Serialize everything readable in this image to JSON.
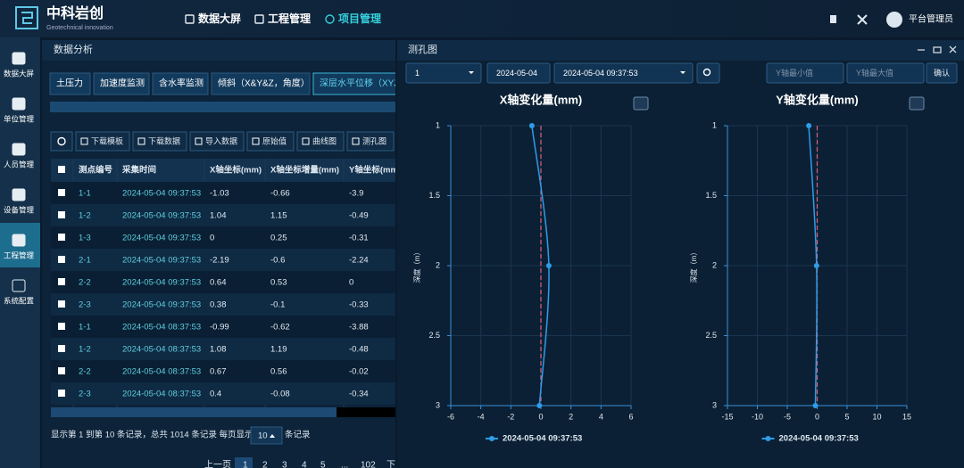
{
  "header": {
    "logo_title": "中科岩创",
    "logo_subtitle": "Geotechnical innovation",
    "nav": [
      "数据大屏",
      "工程管理",
      "项目管理"
    ],
    "user": "平台管理员"
  },
  "sidebar": [
    "数据大屏",
    "单位管理",
    "人员管理",
    "设备管理",
    "工程管理",
    "系统配置"
  ],
  "panel": {
    "title": "数据分析",
    "tabs": [
      "土压力",
      "加速度监测",
      "含水率监测",
      "倾斜（X&Y&Z，角度）",
      "深层水平位移（XYZ）"
    ],
    "toolbar": [
      "下载模板",
      "下载数据",
      "导入数据",
      "原始值",
      "曲线图",
      "测孔图"
    ],
    "table": {
      "columns": [
        "测点编号",
        "采集时间",
        "X轴坐标(mm)",
        "X轴坐标增量(mm)",
        "Y轴坐标(mm)"
      ],
      "rows": [
        [
          "1-1",
          "2024-05-04 09:37:53",
          "-1.03",
          "-0.66",
          "-3.9"
        ],
        [
          "1-2",
          "2024-05-04 09:37:53",
          "1.04",
          "1.15",
          "-0.49"
        ],
        [
          "1-3",
          "2024-05-04 09:37:53",
          "0",
          "0.25",
          "-0.31"
        ],
        [
          "2-1",
          "2024-05-04 09:37:53",
          "-2.19",
          "-0.6",
          "-2.24"
        ],
        [
          "2-2",
          "2024-05-04 09:37:53",
          "0.64",
          "0.53",
          "0"
        ],
        [
          "2-3",
          "2024-05-04 09:37:53",
          "0.38",
          "-0.1",
          "-0.33"
        ],
        [
          "1-1",
          "2024-05-04 08:37:53",
          "-0.99",
          "-0.62",
          "-3.88"
        ],
        [
          "1-2",
          "2024-05-04 08:37:53",
          "1.08",
          "1.19",
          "-0.48"
        ],
        [
          "2-2",
          "2024-05-04 08:37:53",
          "0.67",
          "0.56",
          "-0.02"
        ],
        [
          "2-3",
          "2024-05-04 08:37:53",
          "0.4",
          "-0.08",
          "-0.34"
        ]
      ]
    },
    "footer": {
      "summary": "显示第 1 到第 10 条记录，总共 1014 条记录 每页显示",
      "page_size": "10",
      "unit": "条记录"
    },
    "pagination": [
      "上一页",
      "1",
      "2",
      "3",
      "4",
      "5",
      "...",
      "102",
      "下"
    ]
  },
  "modal": {
    "title": "测孔图",
    "controls": {
      "point": "1",
      "date": "2024-05-04",
      "time": "2024-05-04 09:37:53",
      "min_placeholder": "Y轴最小值",
      "max_placeholder": "Y轴最大值",
      "confirm": "确认"
    },
    "charts": [
      {
        "type": "line",
        "title": "X轴变化量(mm)",
        "y_label": "深度（m）",
        "y": [
          1,
          2,
          3
        ],
        "ylim": [
          1,
          3
        ],
        "yticks": [
          1,
          1.5,
          2,
          2.5,
          3
        ],
        "y_inverted": true,
        "xlim": [
          -6,
          6
        ],
        "xticks": [
          -6,
          -4,
          -2,
          0,
          2,
          4,
          6
        ],
        "grid": true,
        "series": [
          {
            "name": "2024-05-04 09:37:53",
            "color": "#2f9ce8",
            "values": [
              -0.6,
              0.53,
              -0.1
            ]
          }
        ]
      },
      {
        "type": "line",
        "title": "Y轴变化量(mm)",
        "y_label": "深度（m）",
        "y": [
          1,
          2,
          3
        ],
        "ylim": [
          1,
          3
        ],
        "yticks": [
          1,
          1.5,
          2,
          2.5,
          3
        ],
        "y_inverted": true,
        "xlim": [
          -15,
          15
        ],
        "xticks": [
          -15,
          -10,
          -5,
          0,
          5,
          10,
          15
        ],
        "grid": true,
        "series": [
          {
            "name": "2024-05-04 09:37:53",
            "color": "#2f9ce8",
            "values": [
              -1.4,
              -0.1,
              -0.3
            ]
          }
        ]
      }
    ]
  }
}
